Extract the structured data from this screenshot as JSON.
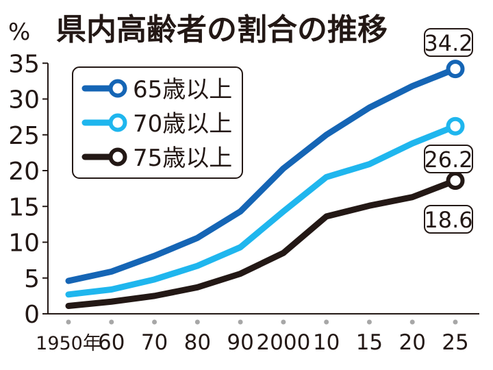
{
  "chart_data": {
    "type": "line",
    "title": "県内高齢者の割合の推移",
    "ylabel": "%",
    "xlabel": "",
    "categories": [
      "1950年",
      "60",
      "70",
      "80",
      "90",
      "2000",
      "10",
      "15",
      "20",
      "25"
    ],
    "ylim": [
      0,
      35
    ],
    "y_ticks": [
      0,
      5,
      10,
      15,
      20,
      25,
      30,
      35
    ],
    "grid": false,
    "legend_position": "top-left",
    "series": [
      {
        "name": "65歳以上",
        "color": "#1565b5",
        "values": [
          4.6,
          5.9,
          8.1,
          10.6,
          14.3,
          20.3,
          25.0,
          28.8,
          31.8,
          34.2
        ],
        "end_label": "34.2"
      },
      {
        "name": "70歳以上",
        "color": "#1fb6ee",
        "values": [
          2.7,
          3.4,
          4.8,
          6.7,
          9.3,
          14.3,
          19.1,
          20.9,
          23.8,
          26.2
        ],
        "end_label": "26.2"
      },
      {
        "name": "75歳以上",
        "color": "#231815",
        "values": [
          1.1,
          1.7,
          2.5,
          3.7,
          5.6,
          8.5,
          13.6,
          15.1,
          16.3,
          18.6
        ],
        "end_label": "18.6"
      }
    ]
  }
}
